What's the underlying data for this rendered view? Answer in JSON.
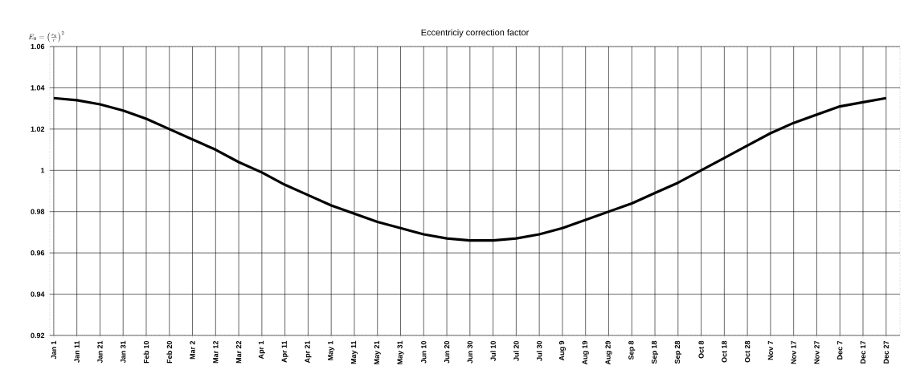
{
  "chart_data": {
    "type": "line",
    "title": "Eccentriciy correction factor",
    "ylabel": "E_{\\mathrm{o}}=\\left(\\frac{r_{\\mathrm{o}}}{r}\\right)^{2}",
    "categories": [
      "Jan 1",
      "Jan 11",
      "Jan 21",
      "Jan 31",
      "Feb 10",
      "Feb 20",
      "Mar 2",
      "Mar 12",
      "Mar 22",
      "Apr 1",
      "Apr 11",
      "Apr 21",
      "May 1",
      "May 11",
      "May 21",
      "May 31",
      "Jun 10",
      "Jun 20",
      "Jun 30",
      "Jul 10",
      "Jul 20",
      "Jul 30",
      "Aug 9",
      "Aug 19",
      "Aug 29",
      "Sep 8",
      "Sep 18",
      "Sep 28",
      "Oct 8",
      "Oct 18",
      "Oct 28",
      "Nov 7",
      "Nov 17",
      "Nov 27",
      "Dec 7",
      "Dec 17",
      "Dec 27"
    ],
    "series": [
      {
        "color": "#000000",
        "values": [
          1.035,
          1.034,
          1.032,
          1.029,
          1.025,
          1.02,
          1.015,
          1.01,
          1.004,
          0.999,
          0.993,
          0.988,
          0.983,
          0.979,
          0.975,
          0.972,
          0.969,
          0.967,
          0.966,
          0.966,
          0.967,
          0.969,
          0.972,
          0.976,
          0.98,
          0.984,
          0.989,
          0.994,
          1.0,
          1.006,
          1.012,
          1.018,
          1.023,
          1.027,
          1.031,
          1.033,
          1.035
        ]
      }
    ],
    "ylim": [
      0.92,
      1.06
    ],
    "yticks": [
      0.92,
      0.94,
      0.96,
      0.98,
      1,
      1.02,
      1.04,
      1.06
    ],
    "grid": true,
    "marker": "none",
    "line_style": "solid"
  }
}
